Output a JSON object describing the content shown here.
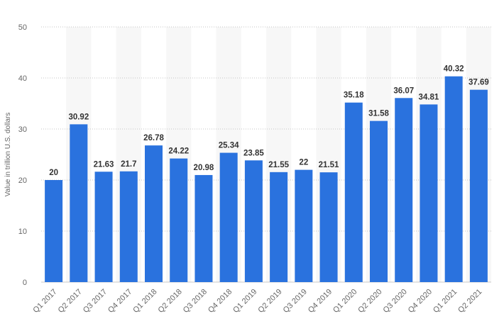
{
  "chart_data": {
    "type": "bar",
    "title": "",
    "xlabel": "",
    "ylabel": "Value in trillion U.S. dollars",
    "ylim": [
      0,
      50
    ],
    "yticks": [
      0,
      10,
      20,
      30,
      40,
      50
    ],
    "grid": true,
    "legend": "none",
    "bar_color": "#2a72de",
    "band_color": "#f7f7f7",
    "categories": [
      "Q1 2017",
      "Q2 2017",
      "Q3 2017",
      "Q4 2017",
      "Q1 2018",
      "Q2 2018",
      "Q3 2018",
      "Q4 2018",
      "Q1 2019",
      "Q2 2019",
      "Q3 2019",
      "Q4 2019",
      "Q1 2020",
      "Q2 2020",
      "Q3 2020",
      "Q4 2020",
      "Q1 2021",
      "Q2 2021"
    ],
    "values": [
      20,
      30.92,
      21.63,
      21.7,
      26.78,
      24.22,
      20.98,
      25.34,
      23.85,
      21.55,
      22,
      21.51,
      35.18,
      31.58,
      36.07,
      34.81,
      40.32,
      37.69
    ]
  }
}
